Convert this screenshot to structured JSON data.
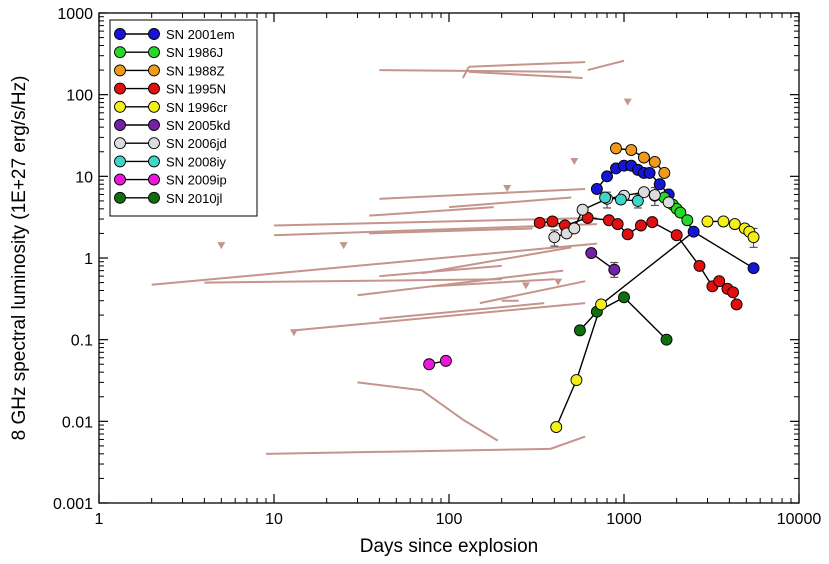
{
  "chart_data": {
    "type": "scatter",
    "xlabel": "Days since explosion",
    "ylabel": "8 GHz spectral luminosity (1E+27 erg/s/Hz)",
    "xscale": "log",
    "yscale": "log",
    "xlim": [
      1,
      10000
    ],
    "ylim": [
      0.001,
      1000
    ],
    "x_ticks": [
      1,
      10,
      100,
      1000,
      10000
    ],
    "x_tick_labels": [
      "1",
      "10",
      "100",
      "1000",
      "10000"
    ],
    "y_ticks": [
      0.001,
      0.01,
      0.1,
      1,
      10,
      100,
      1000
    ],
    "y_tick_labels": [
      "0.001",
      "0.01",
      "0.1",
      "1",
      "10",
      "100",
      "1000"
    ],
    "grid": false,
    "legend_position": "top-left",
    "series": [
      {
        "name": "SN 2001em",
        "color": "#1515d6",
        "points": [
          [
            700,
            7
          ],
          [
            800,
            10
          ],
          [
            900,
            12.5
          ],
          [
            1000,
            13.5
          ],
          [
            1100,
            13.5
          ],
          [
            1200,
            12
          ],
          [
            1300,
            11
          ],
          [
            1400,
            11
          ],
          [
            1600,
            8
          ],
          [
            1800,
            6
          ],
          [
            2500,
            2.1
          ],
          [
            5500,
            0.75
          ]
        ]
      },
      {
        "name": "SN 1986J",
        "color": "#28d828",
        "points": [
          [
            1500,
            5.8
          ],
          [
            1700,
            5.5
          ],
          [
            1900,
            4.5
          ],
          [
            2000,
            4
          ],
          [
            2100,
            3.6
          ],
          [
            2300,
            2.9
          ]
        ]
      },
      {
        "name": "SN 1988Z",
        "color": "#f0991c",
        "points": [
          [
            900,
            22
          ],
          [
            1100,
            21
          ],
          [
            1300,
            17
          ],
          [
            1500,
            15
          ],
          [
            1700,
            11
          ]
        ]
      },
      {
        "name": "SN 1995N",
        "color": "#e01010",
        "points": [
          [
            330,
            2.7
          ],
          [
            390,
            2.8
          ],
          [
            460,
            2.5
          ],
          [
            620,
            3.1
          ],
          [
            820,
            2.9
          ],
          [
            920,
            2.6
          ],
          [
            1050,
            1.95
          ],
          [
            1250,
            2.5
          ],
          [
            1450,
            2.75
          ],
          [
            2000,
            1.9
          ],
          [
            2700,
            0.8
          ],
          [
            3200,
            0.45
          ],
          [
            3500,
            0.52
          ],
          [
            3900,
            0.42
          ],
          [
            4200,
            0.38
          ],
          [
            4400,
            0.27
          ]
        ]
      },
      {
        "name": "SN 1996cr",
        "color": "#f3f019",
        "points": [
          [
            3000,
            2.8
          ],
          [
            3700,
            2.8
          ],
          [
            4300,
            2.6
          ],
          [
            4900,
            2.3
          ],
          [
            5200,
            2.1
          ],
          [
            5500,
            1.8
          ]
        ]
      },
      {
        "name": "SN 2005kd",
        "color": "#7420a8",
        "points": [
          [
            650,
            1.15
          ],
          [
            880,
            0.72
          ]
        ]
      },
      {
        "name": "SN 2006jd",
        "color": "#dcdcdc",
        "points": [
          [
            400,
            1.8
          ],
          [
            470,
            2
          ],
          [
            520,
            2.3
          ],
          [
            580,
            3.9
          ],
          [
            800,
            5.3
          ],
          [
            1000,
            5.8
          ],
          [
            1300,
            6.4
          ],
          [
            1500,
            5.9
          ],
          [
            1800,
            4.8
          ]
        ]
      },
      {
        "name": "SN 2008iy",
        "color": "#3cd7c8",
        "points": [
          [
            780,
            5.5
          ],
          [
            960,
            5.2
          ],
          [
            1200,
            5
          ]
        ]
      },
      {
        "name": "SN 2009ip",
        "color": "#ee17d9",
        "points": [
          [
            77,
            0.05
          ],
          [
            96,
            0.055
          ]
        ]
      },
      {
        "name": "SN 2010jl",
        "color": "#0f6f0f",
        "points": [
          [
            560,
            0.13
          ],
          [
            700,
            0.22
          ],
          [
            1000,
            0.33
          ],
          [
            1750,
            0.1
          ]
        ]
      },
      {
        "name": "",
        "color": "#f3f019",
        "points": [
          [
            410,
            0.0085
          ],
          [
            535,
            0.032
          ],
          [
            740,
            0.27
          ]
        ]
      }
    ],
    "connectors": [
      {
        "color": "#000000",
        "points": [
          [
            410,
            0.0085
          ],
          [
            535,
            0.032
          ],
          [
            740,
            0.27
          ],
          [
            2500,
            2.1
          ]
        ]
      }
    ],
    "upper_limits": {
      "color": "#c4958c",
      "points": [
        [
          5,
          1.4
        ],
        [
          13,
          0.12
        ],
        [
          25,
          1.4
        ],
        [
          215,
          7
        ],
        [
          275,
          0.45
        ],
        [
          420,
          0.5
        ],
        [
          520,
          15
        ],
        [
          1050,
          80
        ]
      ]
    },
    "reference_lines": {
      "color": "#c4958c",
      "segments": [
        [
          [
            40,
            200
          ],
          [
            500,
            190
          ]
        ],
        [
          [
            130,
            190
          ],
          [
            580,
            160
          ]
        ],
        [
          [
            120,
            160
          ],
          [
            130,
            220
          ]
        ],
        [
          [
            130,
            220
          ],
          [
            600,
            250
          ]
        ],
        [
          [
            620,
            200
          ],
          [
            1000,
            260
          ]
        ],
        [
          [
            35,
            3.3
          ],
          [
            180,
            4.2
          ]
        ],
        [
          [
            40,
            5.3
          ],
          [
            600,
            7
          ]
        ],
        [
          [
            100,
            4.2
          ],
          [
            500,
            5.5
          ]
        ],
        [
          [
            35,
            2
          ],
          [
            300,
            2.3
          ]
        ],
        [
          [
            10,
            1.9
          ],
          [
            700,
            2.6
          ]
        ],
        [
          [
            10,
            2.5
          ],
          [
            700,
            3.1
          ]
        ],
        [
          [
            2,
            0.47
          ],
          [
            700,
            1.5
          ]
        ],
        [
          [
            4,
            0.5
          ],
          [
            200,
            0.55
          ]
        ],
        [
          [
            70,
            0.65
          ],
          [
            500,
            1.35
          ]
        ],
        [
          [
            40,
            0.6
          ],
          [
            200,
            0.8
          ]
        ],
        [
          [
            30,
            0.35
          ],
          [
            450,
            0.7
          ]
        ],
        [
          [
            80,
            0.45
          ],
          [
            400,
            0.55
          ]
        ],
        [
          [
            150,
            0.28
          ],
          [
            600,
            0.52
          ]
        ],
        [
          [
            40,
            0.18
          ],
          [
            350,
            0.28
          ]
        ],
        [
          [
            13,
            0.13
          ],
          [
            600,
            0.28
          ]
        ],
        [
          [
            30,
            0.03
          ],
          [
            70,
            0.024
          ]
        ],
        [
          [
            70,
            0.024
          ],
          [
            120,
            0.0105
          ]
        ],
        [
          [
            120,
            0.0105
          ],
          [
            190,
            0.0058
          ]
        ],
        [
          [
            9,
            0.004
          ],
          [
            380,
            0.0046
          ]
        ],
        [
          [
            380,
            0.0046
          ],
          [
            600,
            0.0065
          ]
        ],
        [
          [
            200,
            0.3
          ],
          [
            250,
            0.3
          ]
        ]
      ]
    },
    "error_bars": [
      {
        "x": 880,
        "y": 0.72,
        "low": 0.58,
        "high": 0.88
      },
      {
        "x": 400,
        "y": 1.8,
        "low": 1.4,
        "high": 2.2
      },
      {
        "x": 800,
        "y": 5.3,
        "low": 4.1,
        "high": 6.4
      },
      {
        "x": 1200,
        "y": 5,
        "low": 4.1,
        "high": 6
      },
      {
        "x": 5500,
        "y": 1.8,
        "low": 1.35,
        "high": 2.3
      },
      {
        "x": 1500,
        "y": 5.9,
        "low": 4.4,
        "high": 7.3
      }
    ],
    "connected_series": [
      "SN 2001em",
      "SN 1988Z",
      "SN 1995N",
      "SN 2005kd",
      "SN 2006jd",
      "SN 2009ip",
      "SN 2010jl",
      "SN 1996cr",
      "SN 2008iy"
    ]
  }
}
